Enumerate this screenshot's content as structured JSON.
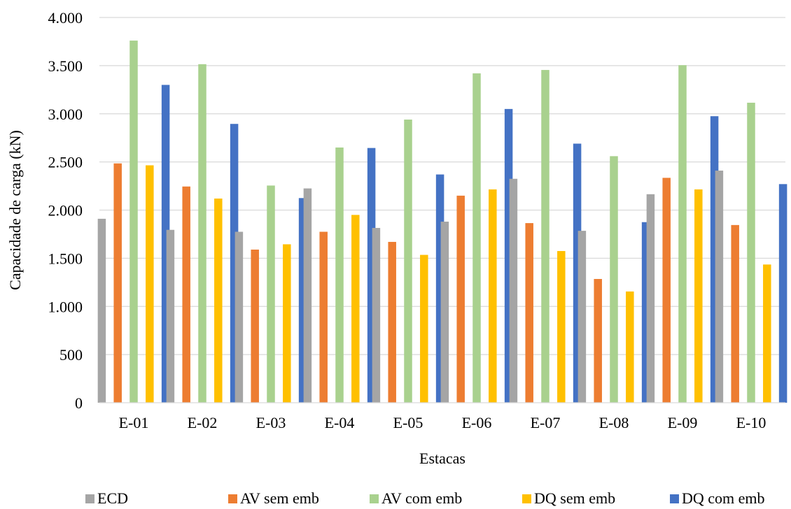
{
  "chart_data": {
    "type": "bar",
    "title": "",
    "xlabel": "Estacas",
    "ylabel": "Capacidade de carga (kN)",
    "ylim": [
      0,
      4000
    ],
    "yticks": [
      0,
      500,
      1000,
      1500,
      2000,
      2500,
      3000,
      3500,
      4000
    ],
    "ytick_labels": [
      "0",
      "500",
      "1.000",
      "1.500",
      "2.000",
      "2.500",
      "3.000",
      "3.500",
      "4.000"
    ],
    "grid": true,
    "legend_position": "bottom",
    "categories": [
      "E-01",
      "E-02",
      "E-03",
      "E-04",
      "E-05",
      "E-06",
      "E-07",
      "E-08",
      "E-09",
      "E-10"
    ],
    "series": [
      {
        "name": "ECD",
        "color": "#A5A5A5",
        "values": [
          1910,
          1795,
          1775,
          2225,
          1815,
          1880,
          2325,
          1785,
          2165,
          2410
        ]
      },
      {
        "name": "AV sem emb",
        "color": "#ED7D31",
        "values": [
          2485,
          2245,
          1590,
          1775,
          1670,
          2150,
          1865,
          1285,
          2335,
          1845
        ]
      },
      {
        "name": "AV com emb",
        "color": "#A9D18E",
        "values": [
          3760,
          3515,
          2255,
          2650,
          2940,
          3420,
          3455,
          2560,
          3505,
          3115
        ]
      },
      {
        "name": "DQ sem emb",
        "color": "#FFC000",
        "values": [
          2465,
          2120,
          1645,
          1950,
          1535,
          2215,
          1575,
          1155,
          2215,
          1435
        ]
      },
      {
        "name": "DQ com emb",
        "color": "#4472C4",
        "values": [
          3300,
          2895,
          2125,
          2645,
          2370,
          3050,
          2690,
          1875,
          2975,
          2270
        ]
      }
    ]
  }
}
